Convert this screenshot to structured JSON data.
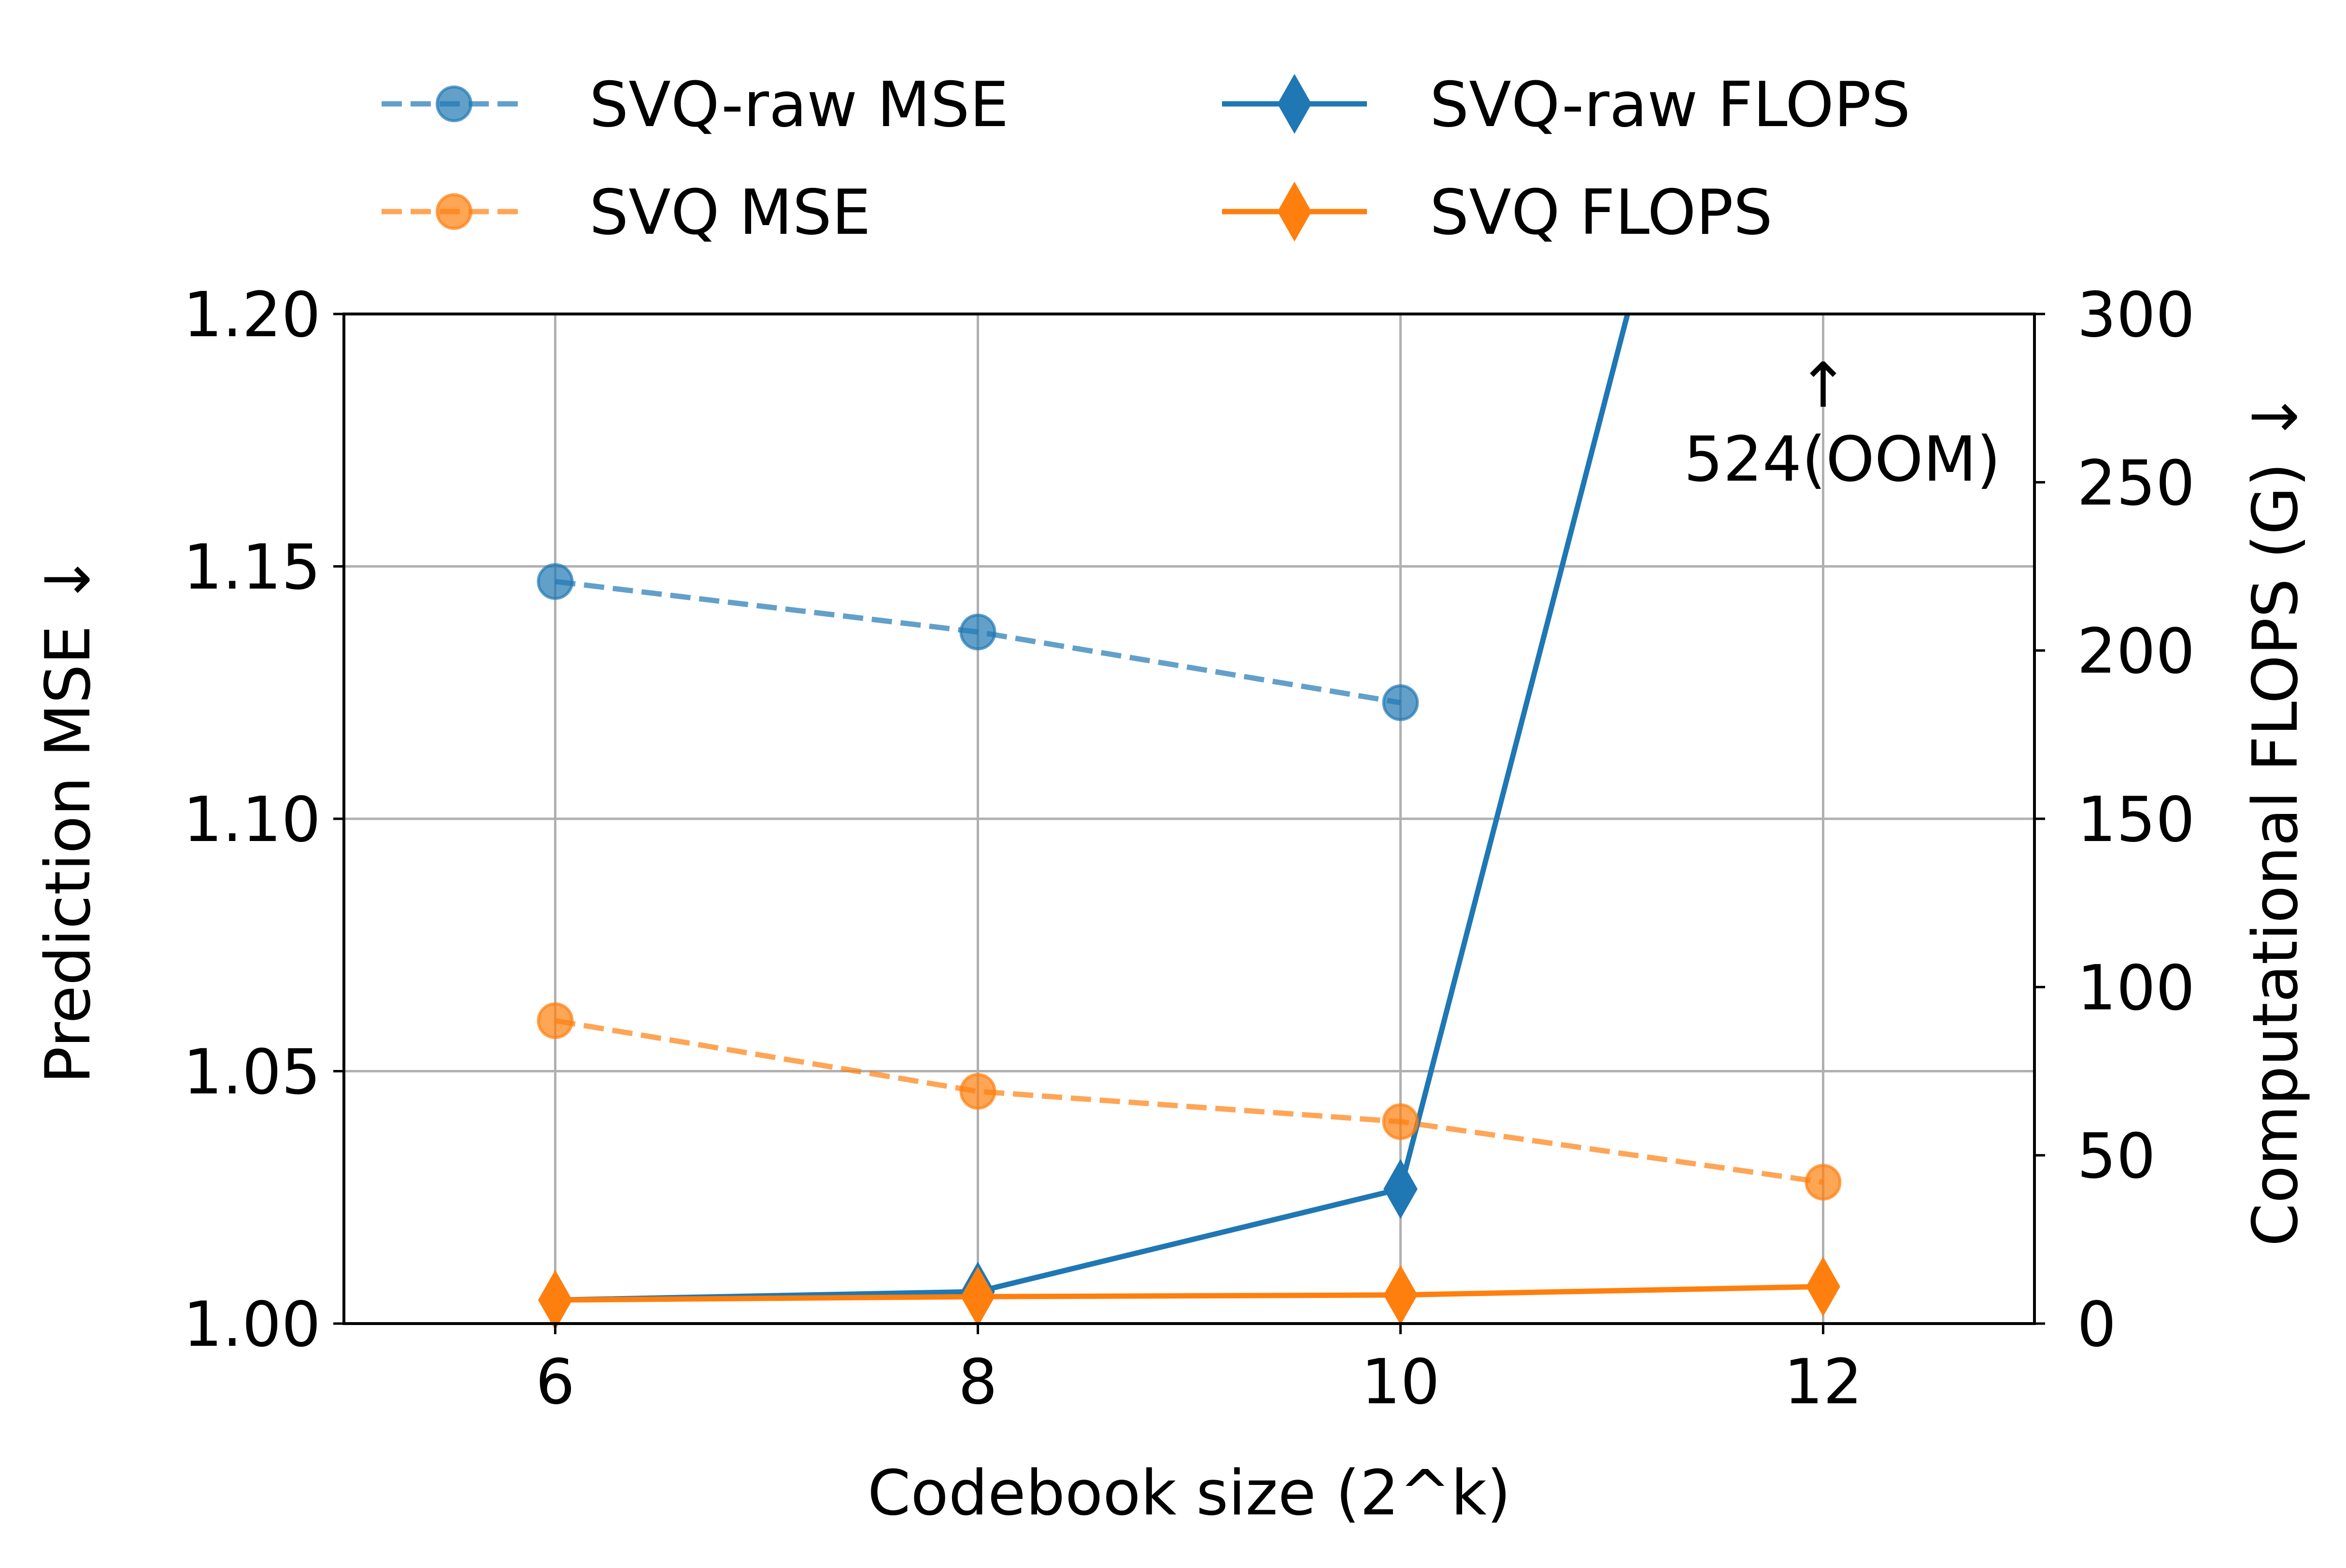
{
  "chart_data": {
    "type": "line",
    "title": "",
    "xlabel": "Codebook size (2^k)",
    "ylabel_left": "Prediction MSE ↓",
    "ylabel_right": "Computational FLOPS (G) ↓",
    "xlim": [
      5,
      13
    ],
    "ylim_left": [
      1.0,
      1.2
    ],
    "ylim_right": [
      0,
      300
    ],
    "x_ticks": [
      6,
      8,
      10,
      12
    ],
    "y_left_ticks": [
      "1.00",
      "1.05",
      "1.10",
      "1.15",
      "1.20"
    ],
    "y_right_ticks": [
      "0",
      "50",
      "100",
      "150",
      "200",
      "250",
      "300"
    ],
    "grid": true,
    "legend_position": "top",
    "series": [
      {
        "name": "SVQ-raw MSE",
        "axis": "left",
        "style": "dashed",
        "marker": "circle",
        "color": "#1f77b4",
        "x": [
          6,
          8,
          10
        ],
        "values": [
          1.147,
          1.137,
          1.123
        ]
      },
      {
        "name": "SVQ MSE",
        "axis": "left",
        "style": "dashed",
        "marker": "circle",
        "color": "#ff7f0e",
        "x": [
          6,
          8,
          10,
          12
        ],
        "values": [
          1.06,
          1.046,
          1.04,
          1.028
        ]
      },
      {
        "name": "SVQ-raw FLOPS",
        "axis": "right",
        "style": "solid",
        "marker": "diamond",
        "color": "#1f77b4",
        "x": [
          6,
          8,
          10,
          12
        ],
        "values": [
          7,
          9.5,
          40,
          524
        ]
      },
      {
        "name": "SVQ FLOPS",
        "axis": "right",
        "style": "solid",
        "marker": "diamond",
        "color": "#ff7f0e",
        "x": [
          6,
          8,
          10,
          12
        ],
        "values": [
          7,
          8,
          8.5,
          11
        ]
      }
    ],
    "annotations": [
      {
        "text": "↑",
        "x": 12,
        "axis": "right",
        "value": 300
      },
      {
        "text": "524(OOM)",
        "x": 12,
        "axis": "right",
        "value": 300
      }
    ]
  }
}
